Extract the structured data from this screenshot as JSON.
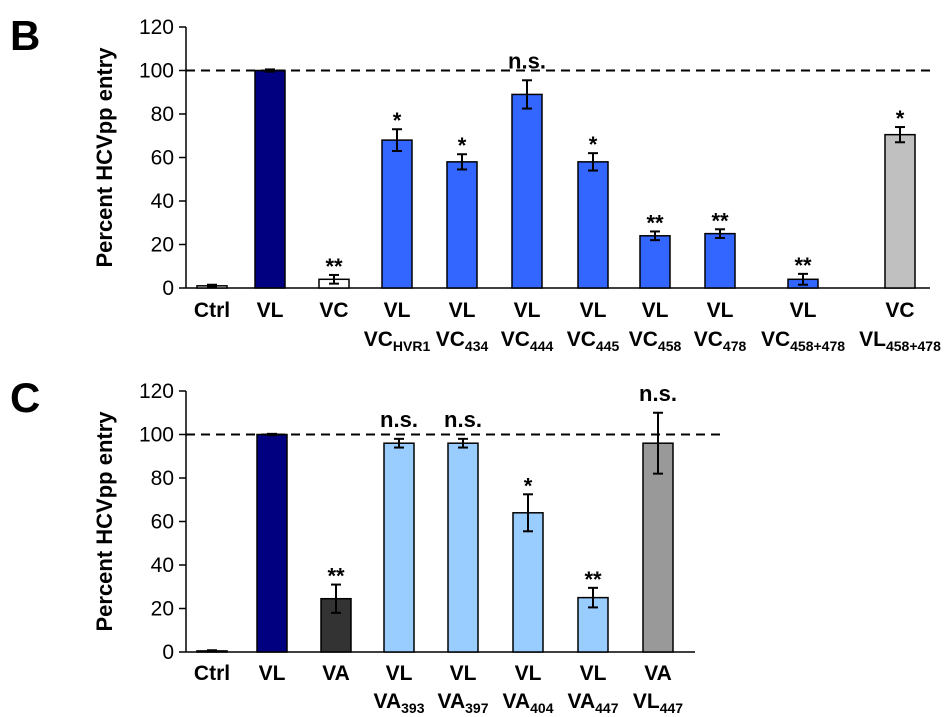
{
  "chart_data": [
    {
      "panel_label": "B",
      "type": "bar",
      "ylabel": "Percent HCVpp entry",
      "ylim": [
        0,
        120
      ],
      "yticks": [
        "0",
        "20",
        "40",
        "60",
        "80",
        "100",
        "120"
      ],
      "reference_line": 100,
      "categories": [
        {
          "line1": "Ctrl",
          "line2": "",
          "sub": ""
        },
        {
          "line1": "VL",
          "line2": "",
          "sub": ""
        },
        {
          "line1": "VC",
          "line2": "",
          "sub": ""
        },
        {
          "line1": "VL",
          "line2": "VC",
          "sub": "HVR1"
        },
        {
          "line1": "VL",
          "line2": "VC",
          "sub": "434"
        },
        {
          "line1": "VL",
          "line2": "VC",
          "sub": "444"
        },
        {
          "line1": "VL",
          "line2": "VC",
          "sub": "445"
        },
        {
          "line1": "VL",
          "line2": "VC",
          "sub": "458"
        },
        {
          "line1": "VL",
          "line2": "VC",
          "sub": "478"
        },
        {
          "line1": "VL",
          "line2": "VC",
          "sub": "458+478"
        },
        {
          "line1": "VC",
          "line2": "VL",
          "sub": "458+478"
        }
      ],
      "values": [
        1,
        100,
        4,
        68,
        58,
        89,
        58,
        24,
        25,
        4,
        70.5
      ],
      "errors": [
        0.5,
        0.5,
        2,
        5,
        3.5,
        6.5,
        4,
        2,
        2,
        2.5,
        3.5
      ],
      "significance": [
        "",
        "",
        "**",
        "*",
        "*",
        "n.s.",
        "*",
        "**",
        "**",
        "**",
        "*"
      ],
      "colors": [
        "#ffffff",
        "#000080",
        "#ffffff",
        "#3366ff",
        "#3366ff",
        "#3366ff",
        "#3366ff",
        "#3366ff",
        "#3366ff",
        "#3366ff",
        "#c0c0c0"
      ]
    },
    {
      "panel_label": "C",
      "type": "bar",
      "ylabel": "Percent HCVpp entry",
      "ylim": [
        0,
        120
      ],
      "yticks": [
        "0",
        "20",
        "40",
        "60",
        "80",
        "100",
        "120"
      ],
      "reference_line": 100,
      "categories": [
        {
          "line1": "Ctrl",
          "line2": "",
          "sub": ""
        },
        {
          "line1": "VL",
          "line2": "",
          "sub": ""
        },
        {
          "line1": "VA",
          "line2": "",
          "sub": ""
        },
        {
          "line1": "VL",
          "line2": "VA",
          "sub": "393"
        },
        {
          "line1": "VL",
          "line2": "VA",
          "sub": "397"
        },
        {
          "line1": "VL",
          "line2": "VA",
          "sub": "404"
        },
        {
          "line1": "VL",
          "line2": "VA",
          "sub": "447"
        },
        {
          "line1": "VA",
          "line2": "VL",
          "sub": "447"
        }
      ],
      "values": [
        0.5,
        100,
        24.5,
        96,
        96,
        64,
        25,
        96
      ],
      "errors": [
        0.3,
        0.3,
        6.5,
        2,
        2,
        8.5,
        4.5,
        14
      ],
      "significance": [
        "",
        "",
        "**",
        "n.s.",
        "n.s.",
        "*",
        "**",
        "n.s."
      ],
      "colors": [
        "#ffffff",
        "#000080",
        "#333333",
        "#99ccff",
        "#99ccff",
        "#99ccff",
        "#99ccff",
        "#999999"
      ]
    }
  ]
}
